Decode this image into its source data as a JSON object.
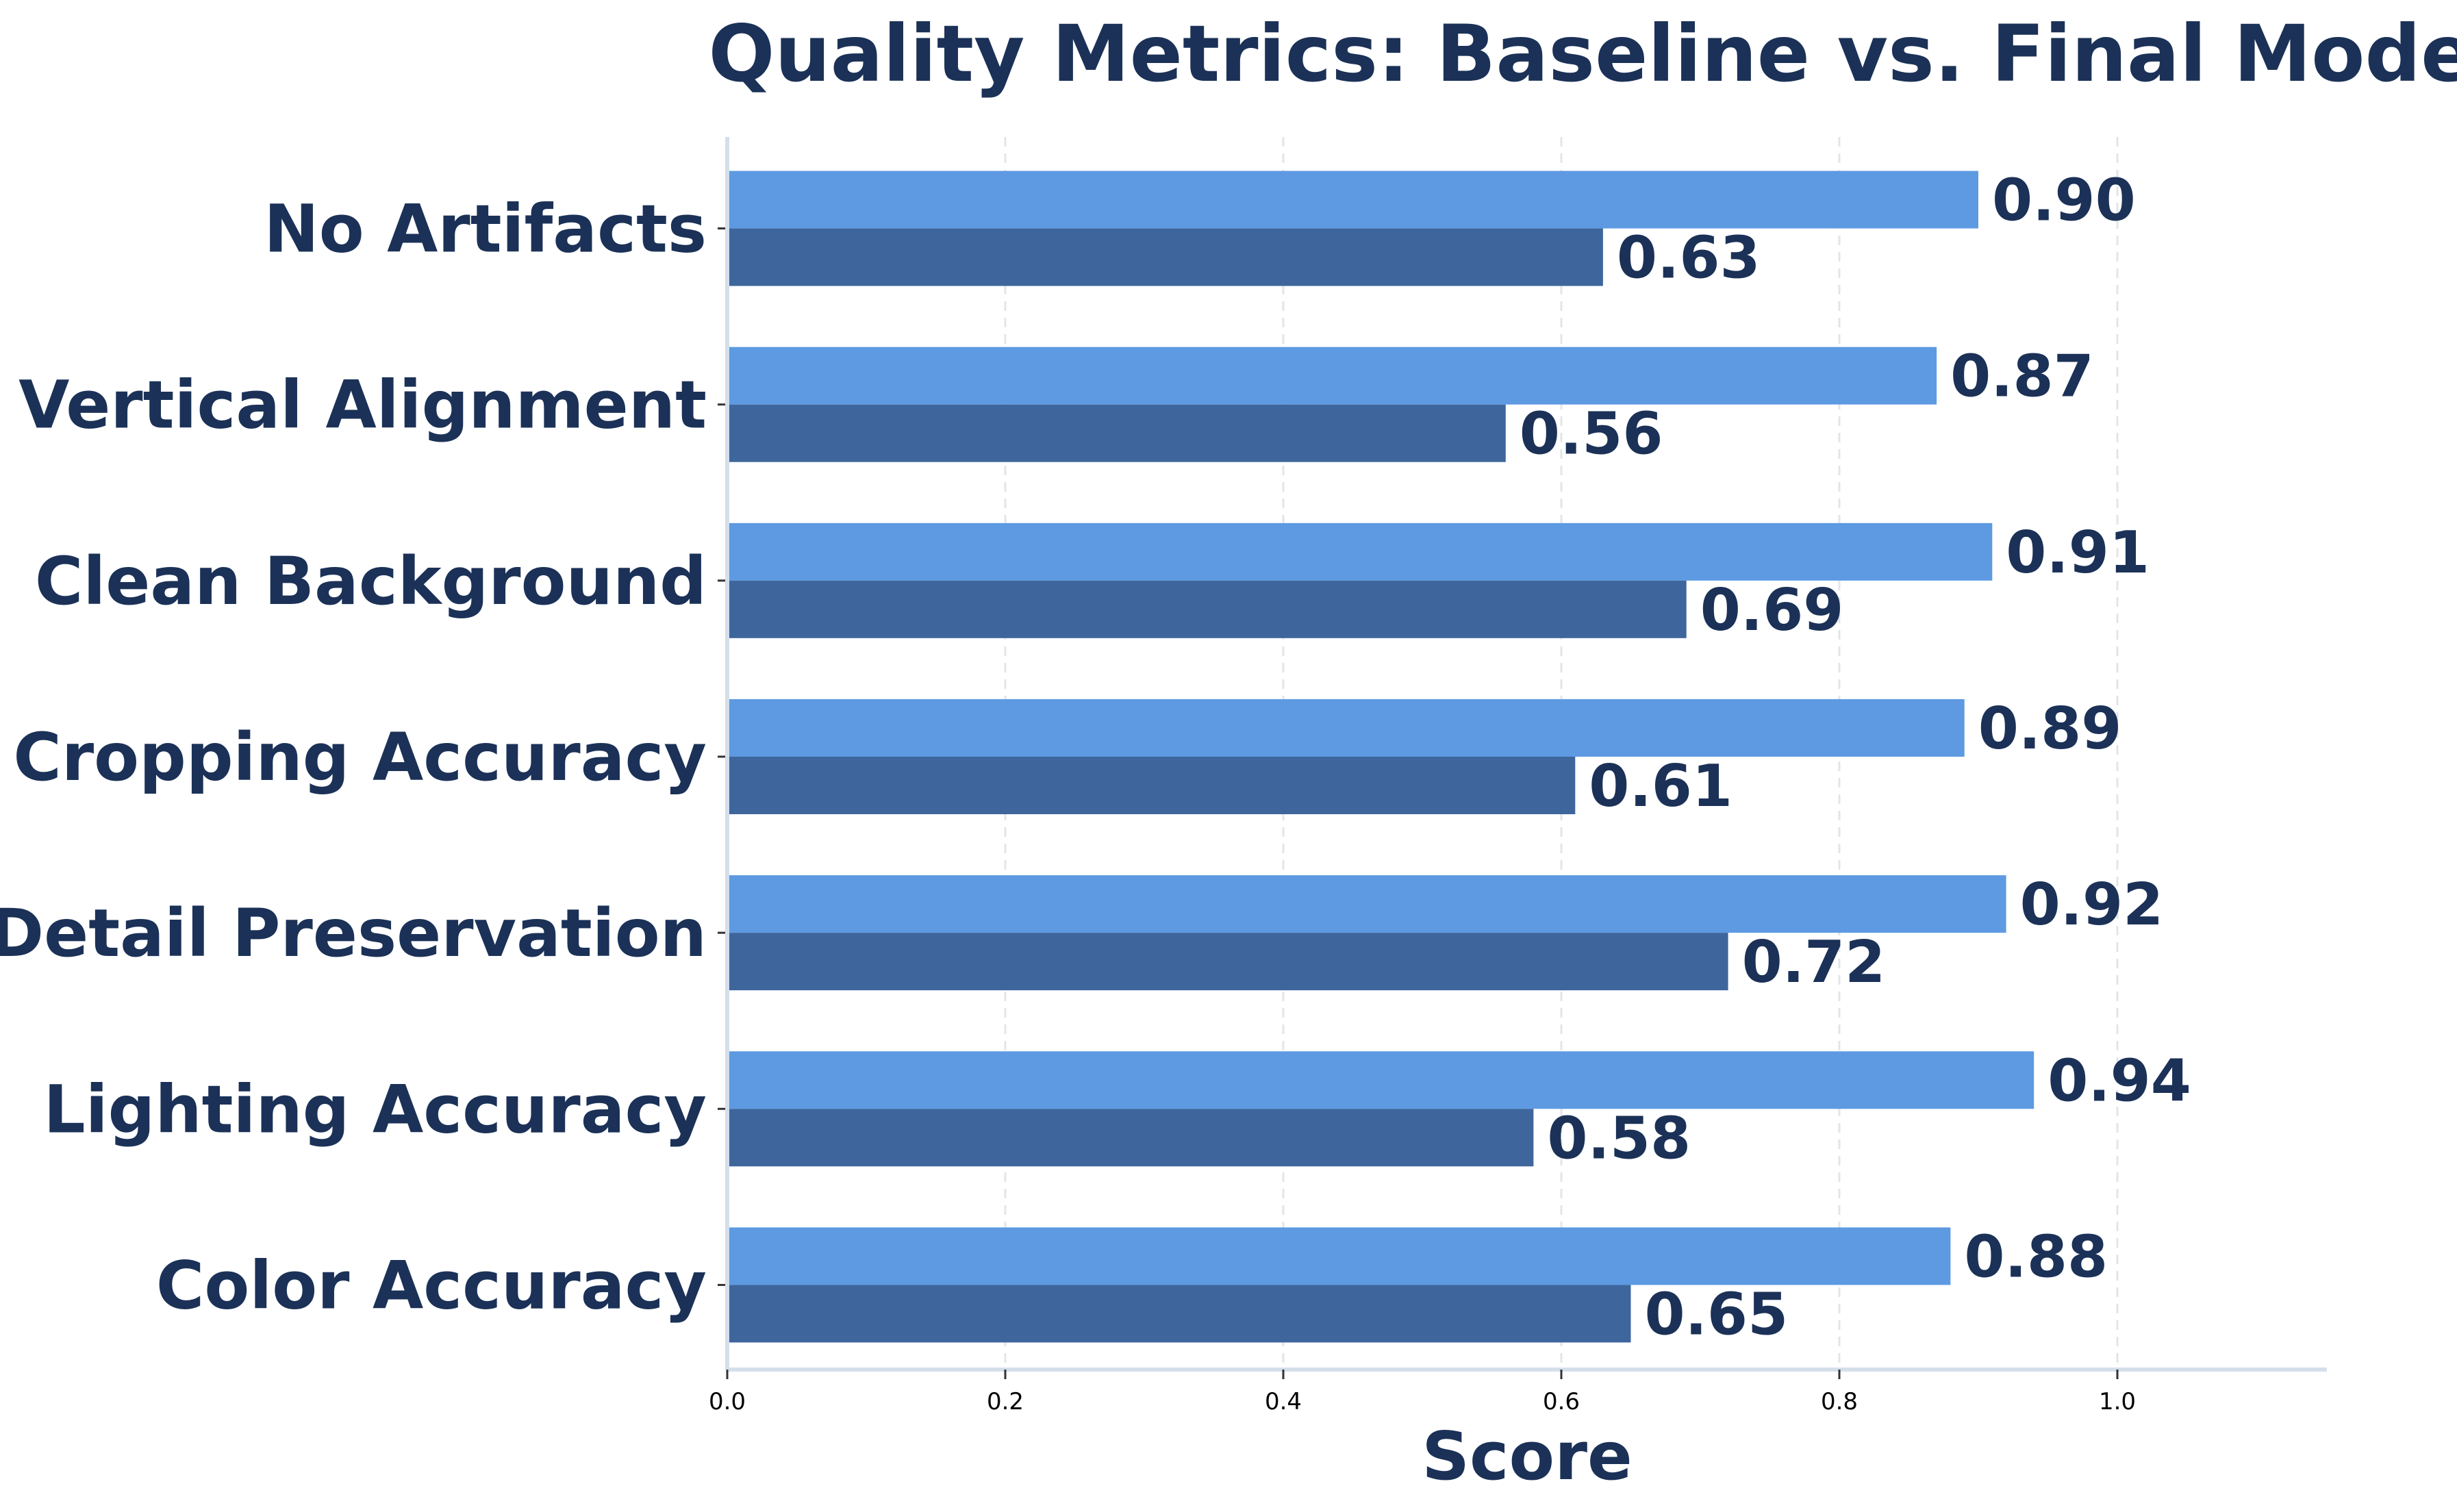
{
  "chart_data": {
    "type": "bar",
    "orientation": "horizontal",
    "title": "Quality Metrics: Baseline vs. Final Model",
    "xlabel": "Score",
    "ylabel": "",
    "xlim": [
      0,
      1.15
    ],
    "x_ticks": [
      "0.0",
      "0.2",
      "0.4",
      "0.6",
      "0.8",
      "1.0"
    ],
    "x_tick_values": [
      0.0,
      0.2,
      0.4,
      0.6,
      0.8,
      1.0
    ],
    "grid": "vertical dashed",
    "categories": [
      "Color Accuracy",
      "Lighting Accuracy",
      "Detail Preservation",
      "Cropping Accuracy",
      "Clean Background",
      "Vertical Alignment",
      "No Artifacts"
    ],
    "series": [
      {
        "color": "#5d9ae2",
        "values": [
          0.88,
          0.94,
          0.92,
          0.89,
          0.91,
          0.87,
          0.9
        ],
        "value_labels": [
          "0.88",
          "0.94",
          "0.92",
          "0.89",
          "0.91",
          "0.87",
          "0.90"
        ]
      },
      {
        "color": "#3e669c",
        "values": [
          0.65,
          0.58,
          0.72,
          0.61,
          0.69,
          0.56,
          0.63
        ],
        "value_labels": [
          "0.65",
          "0.58",
          "0.72",
          "0.61",
          "0.69",
          "0.56",
          "0.63"
        ]
      }
    ],
    "colors": {
      "text": "#1b3157",
      "axis": "#d4dfeb",
      "grid": "#e2e6ea"
    }
  }
}
